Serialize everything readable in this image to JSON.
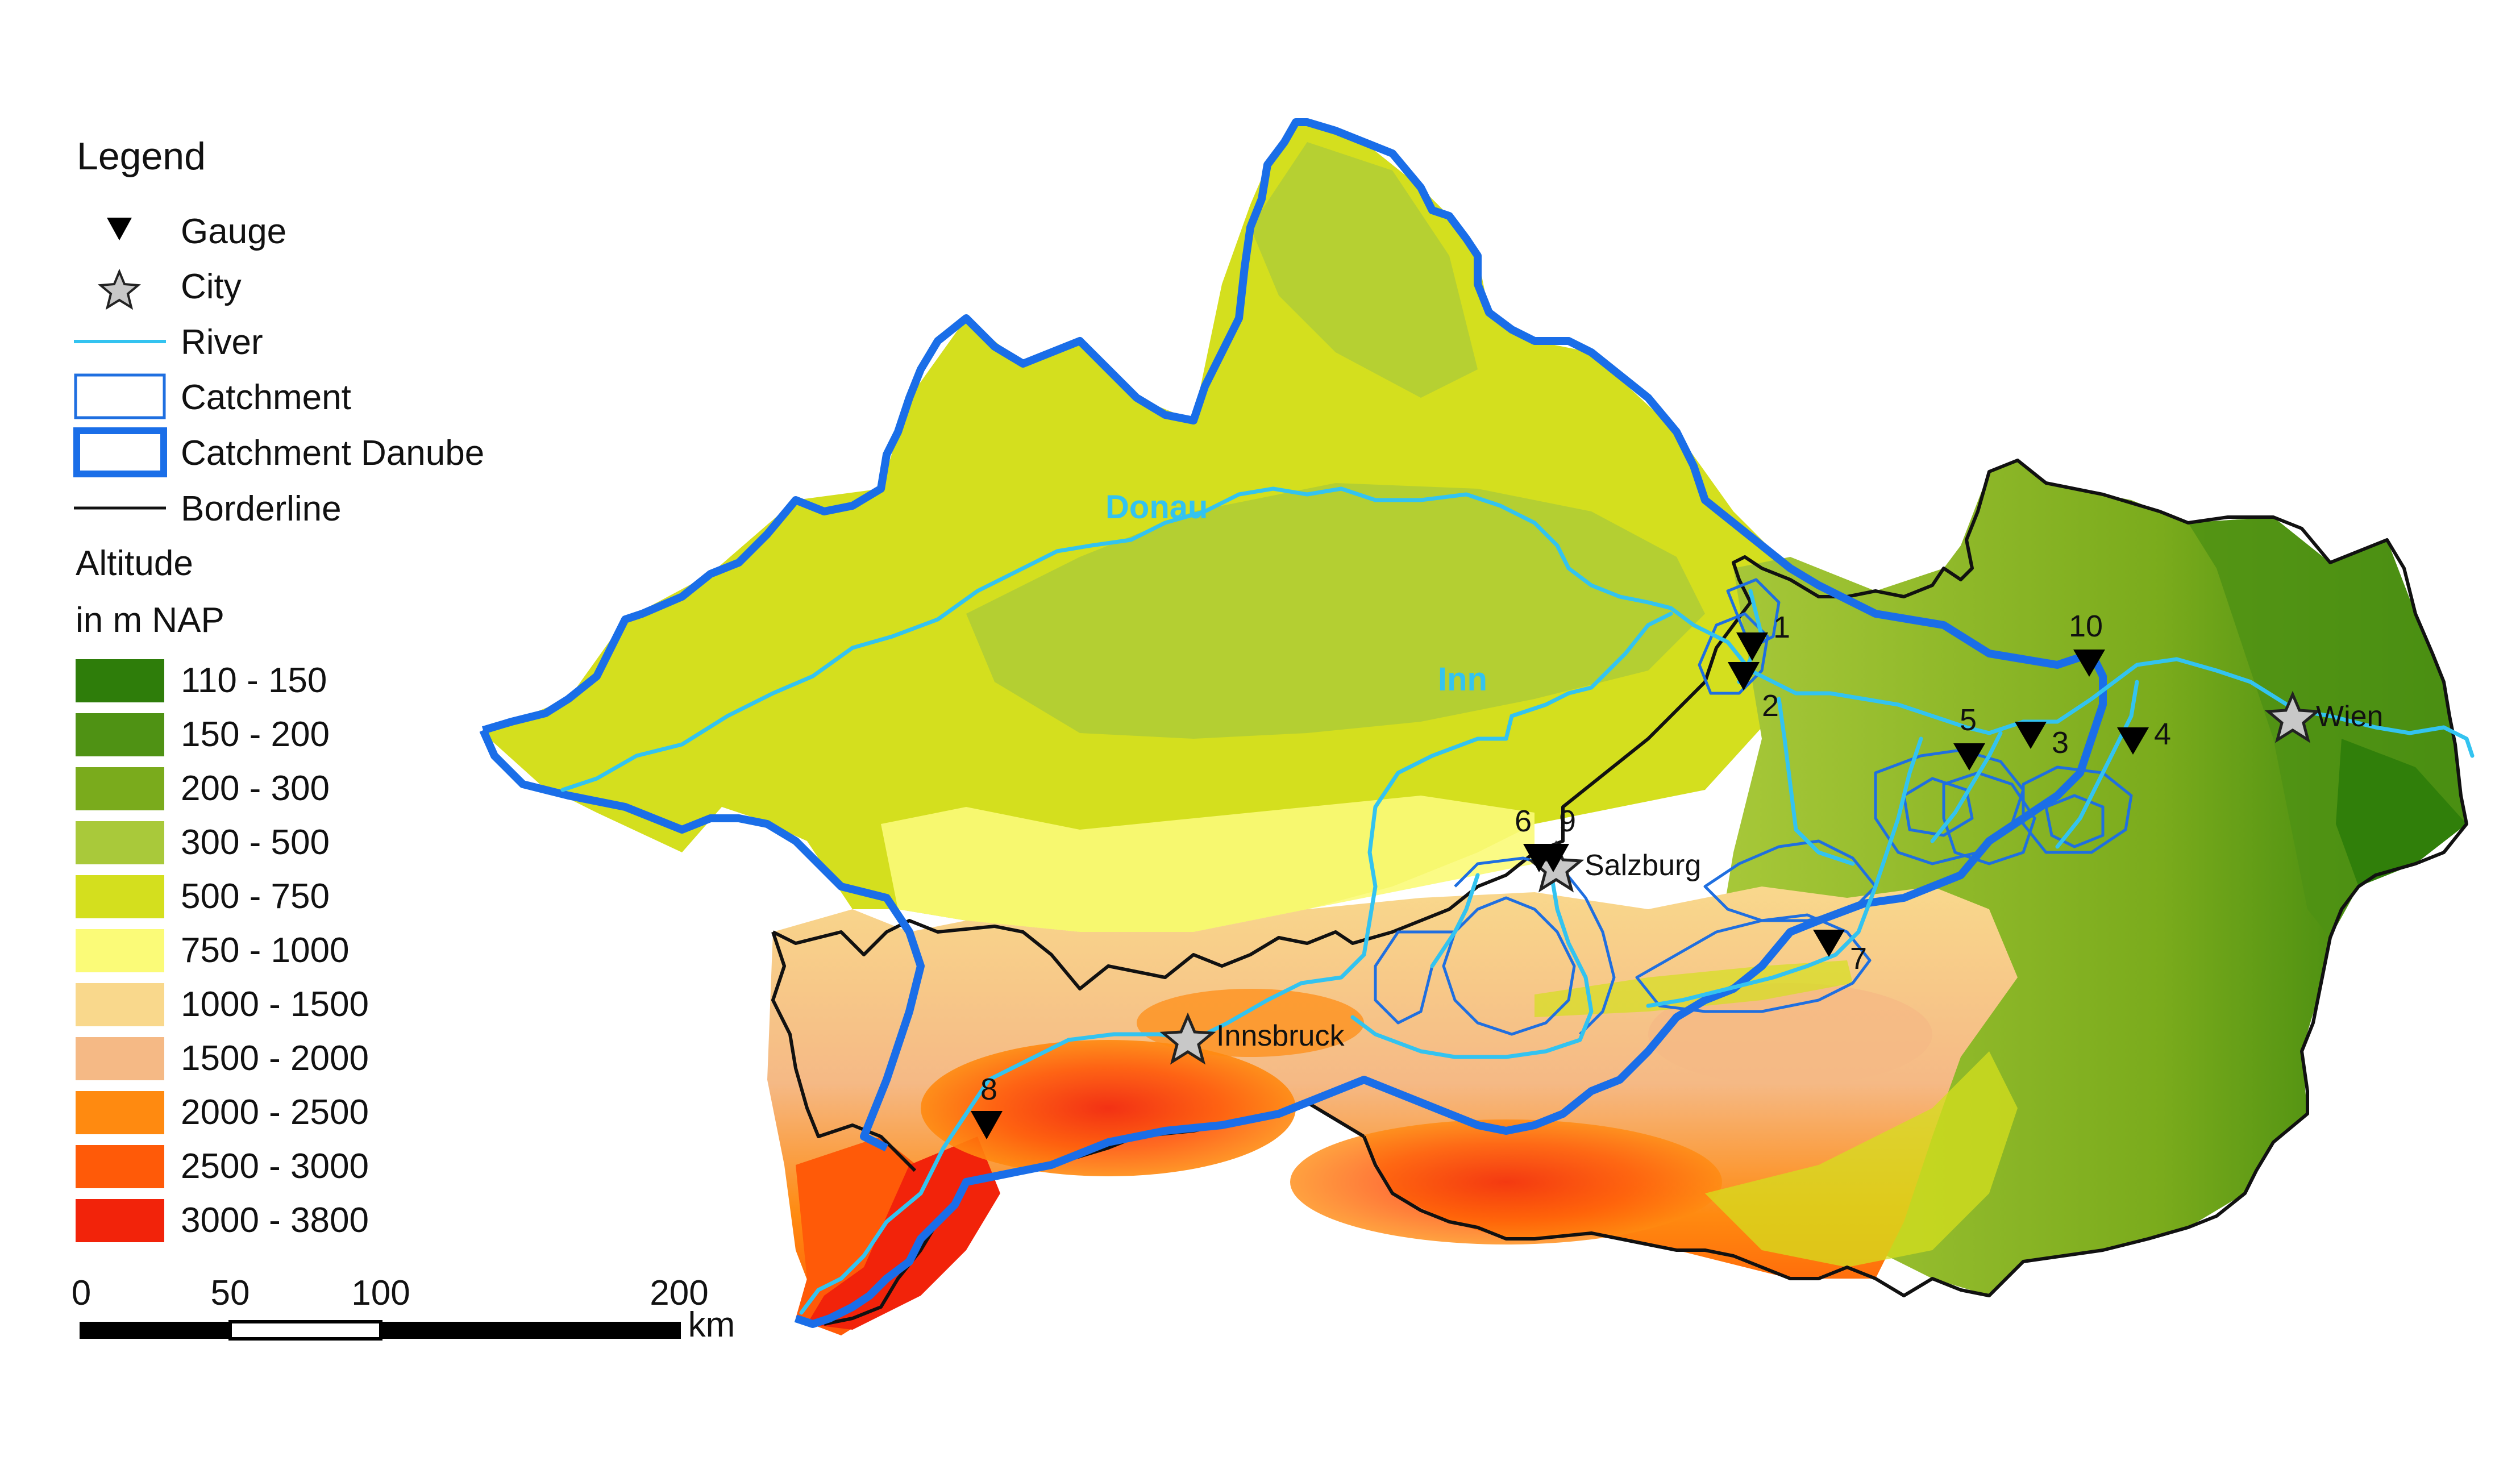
{
  "legend": {
    "title": "Legend",
    "items": [
      {
        "label": "Gauge",
        "icon": "gauge-triangle-icon"
      },
      {
        "label": "City",
        "icon": "city-star-icon"
      },
      {
        "label": "River",
        "icon": "river-line-icon"
      },
      {
        "label": "Catchment",
        "icon": "catchment-box-icon"
      },
      {
        "label": "Catchment Danube",
        "icon": "catchment-danube-box-icon"
      },
      {
        "label": "Borderline",
        "icon": "borderline-line-icon"
      }
    ],
    "altitude_title_1": "Altitude",
    "altitude_title_2": "in m NAP",
    "altitude_classes": [
      {
        "label": "110 - 150",
        "color": "#2e7d0a"
      },
      {
        "label": "150 - 200",
        "color": "#4f9214"
      },
      {
        "label": "200 - 300",
        "color": "#7aab1c"
      },
      {
        "label": "300 - 500",
        "color": "#a9c93a"
      },
      {
        "label": "500 - 750",
        "color": "#d4df1e"
      },
      {
        "label": "750 - 1000",
        "color": "#fbfb78"
      },
      {
        "label": "1000 - 1500",
        "color": "#f9d88c"
      },
      {
        "label": "1500 - 2000",
        "color": "#f5b985"
      },
      {
        "label": "2000 - 2500",
        "color": "#ff8a10"
      },
      {
        "label": "2500 - 3000",
        "color": "#ff5a08"
      },
      {
        "label": "3000 - 3800",
        "color": "#f2230a"
      }
    ]
  },
  "scalebar": {
    "ticks": [
      "0",
      "50",
      "100",
      "200"
    ],
    "unit": "km"
  },
  "rivers": {
    "donau": "Donau",
    "inn": "Inn"
  },
  "cities": {
    "wien": "Wien",
    "salzburg": "Salzburg",
    "innsbruck": "Innsbruck"
  },
  "gauges": {
    "g1": "1",
    "g2": "2",
    "g3": "3",
    "g4": "4",
    "g5": "5",
    "g6": "6",
    "g7": "7",
    "g8": "8",
    "g9": "9",
    "g10": "10"
  },
  "colors": {
    "river": "#33c3f0",
    "catchment": "#1f6fe0",
    "catchment_danube": "#1a6ee8",
    "border": "#111111",
    "gauge": "#000000",
    "city_fill": "#c8c8c8"
  }
}
